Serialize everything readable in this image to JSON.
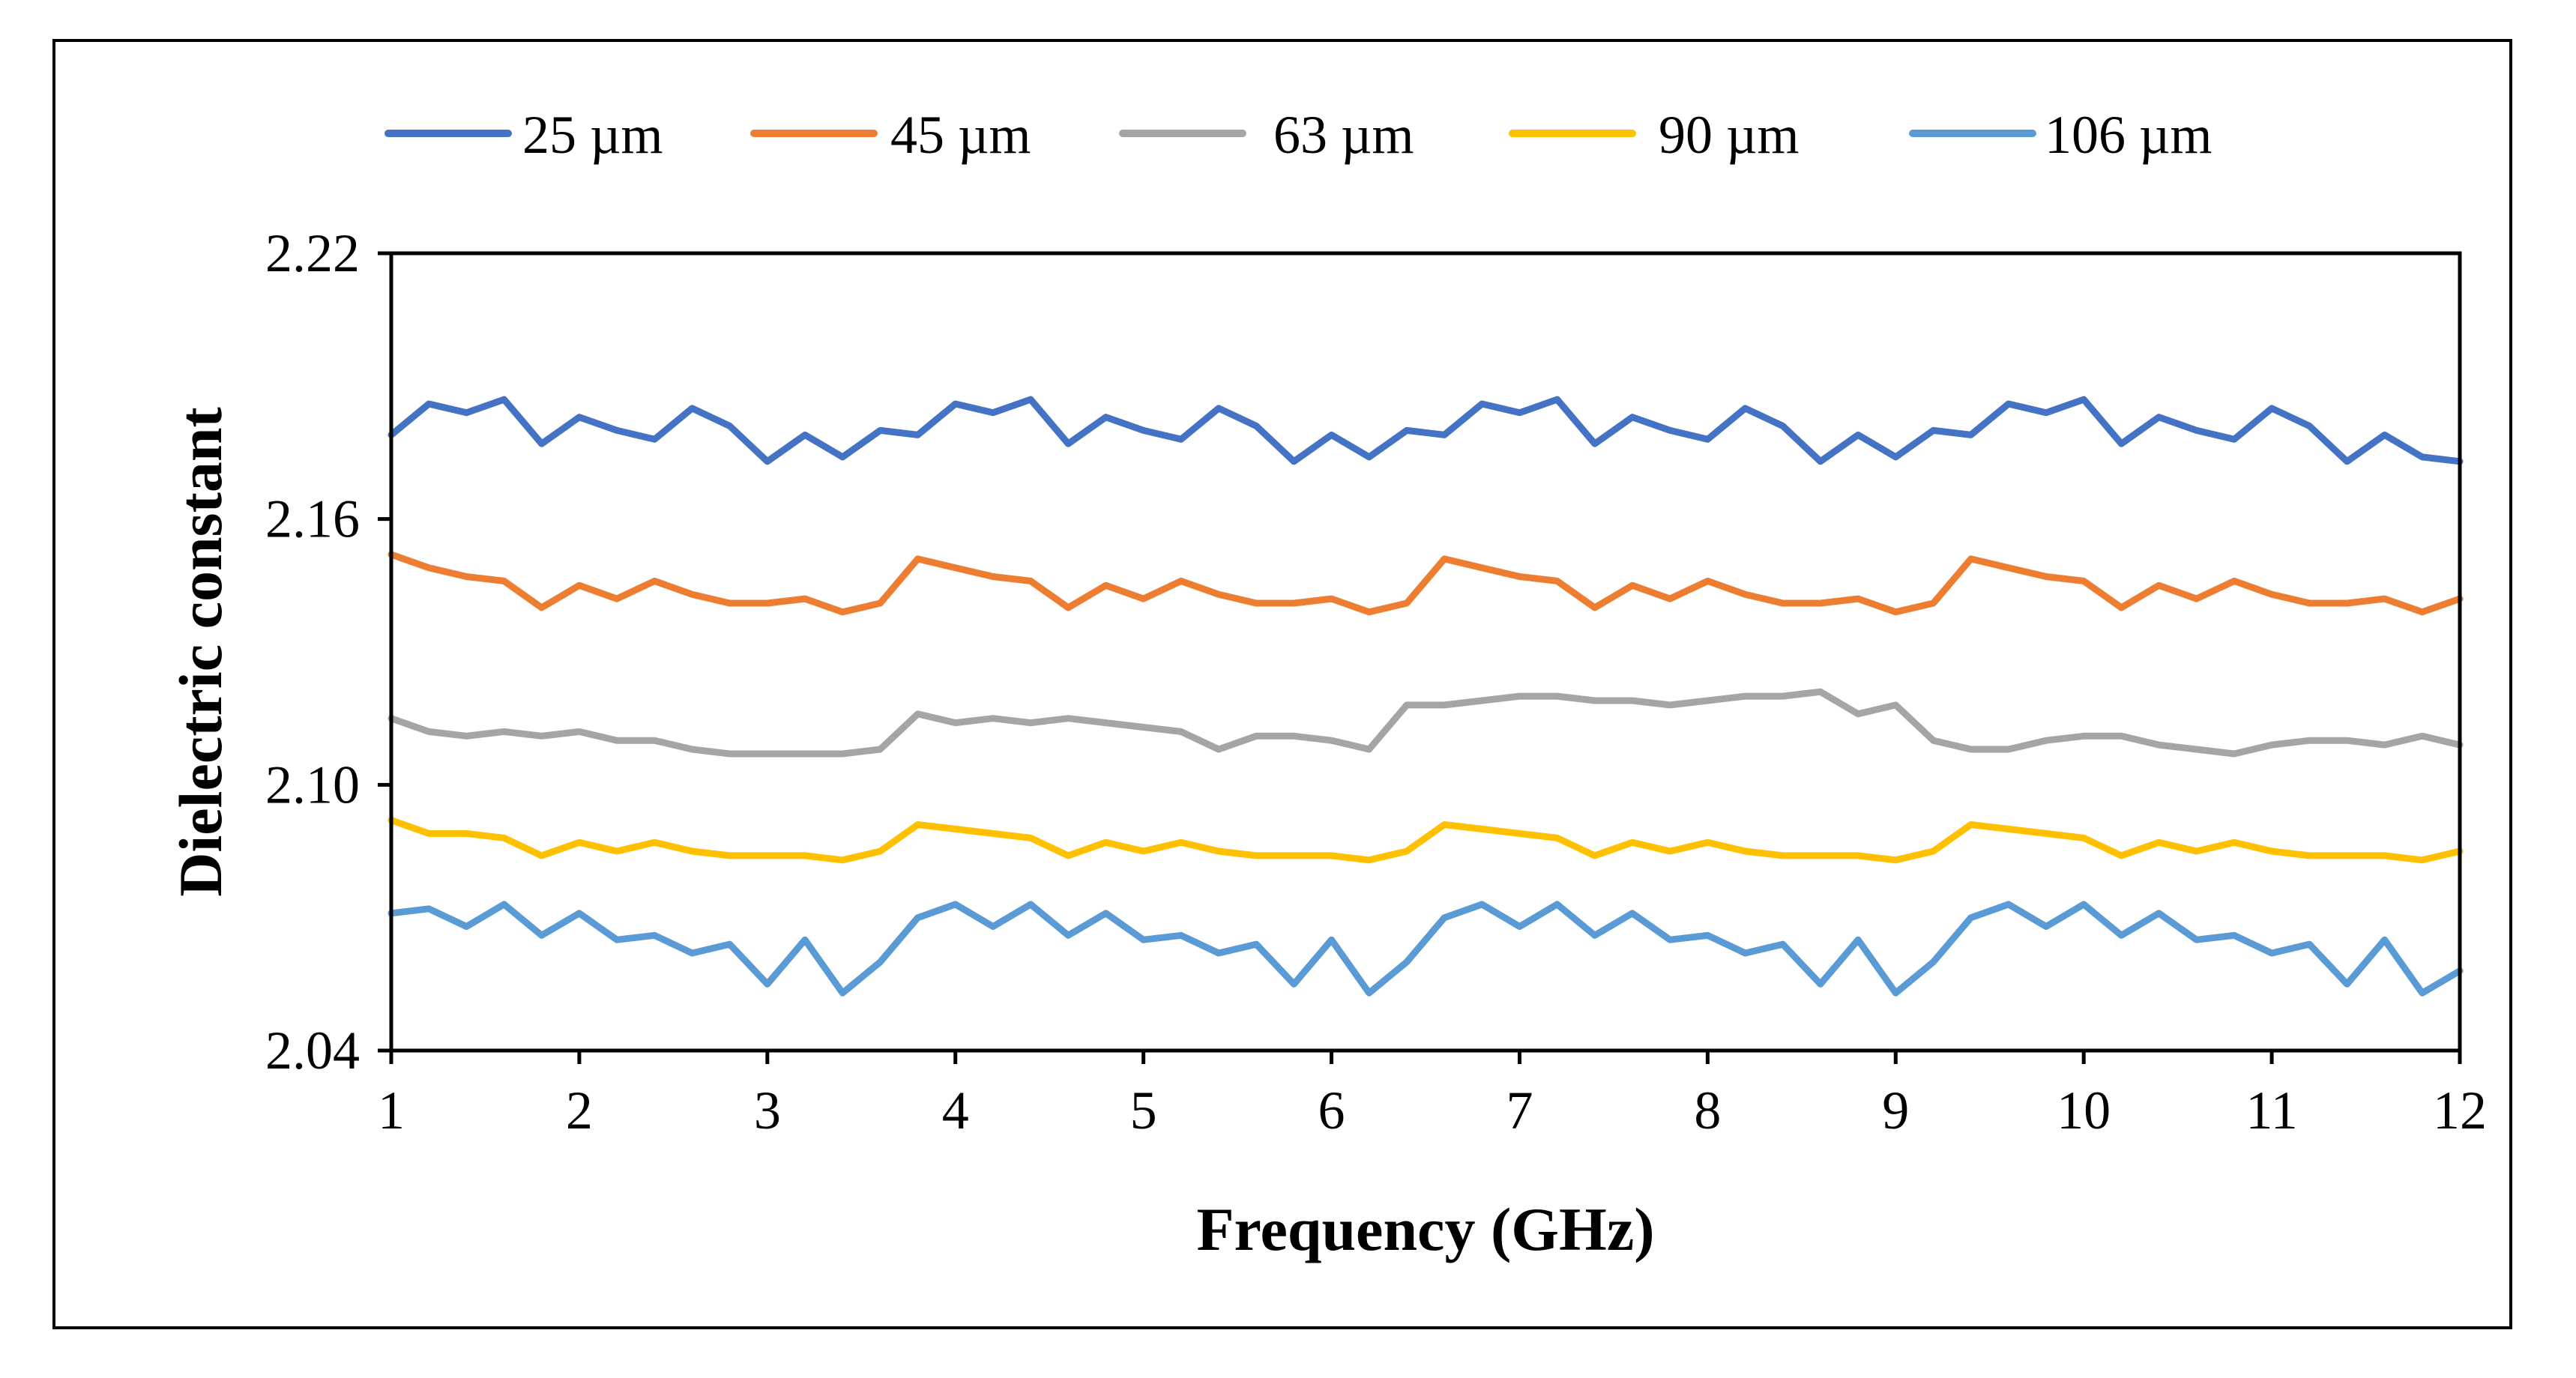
{
  "chart_data": {
    "type": "line",
    "title": "",
    "xlabel": "Frequency (GHz)",
    "ylabel": "Dielectric constant",
    "xlim": [
      1,
      12
    ],
    "ylim": [
      2.04,
      2.22
    ],
    "x_ticks": [
      1,
      2,
      3,
      4,
      5,
      6,
      7,
      8,
      9,
      10,
      11,
      12
    ],
    "x_tick_labels": [
      "1",
      "2",
      "3",
      "4",
      "5",
      "6",
      "7",
      "8",
      "9",
      "10",
      "11",
      "12"
    ],
    "y_ticks": [
      2.04,
      2.1,
      2.16,
      2.22
    ],
    "y_tick_labels": [
      "2.04",
      "2.10",
      "2.16",
      "2.22"
    ],
    "grid": false,
    "legend_position": "top",
    "x": [
      1.0,
      1.2,
      1.4,
      1.6,
      1.8,
      2.0,
      2.2,
      2.4,
      2.6,
      2.8,
      3.0,
      3.2,
      3.4,
      3.6,
      3.8,
      4.0,
      4.2,
      4.4,
      4.6,
      4.8,
      5.0,
      5.2,
      5.4,
      5.6,
      5.8,
      6.0,
      6.2,
      6.4,
      6.6,
      6.8,
      7.0,
      7.2,
      7.4,
      7.6,
      7.8,
      8.0,
      8.2,
      8.4,
      8.6,
      8.8,
      9.0,
      9.2,
      9.4,
      9.6,
      9.8,
      10.0,
      10.2,
      10.4,
      10.6,
      10.8,
      11.0,
      11.2,
      11.4,
      11.6,
      11.8,
      12.0
    ],
    "series": [
      {
        "name": "25 µm",
        "color": "#4472C4",
        "values": [
          2.179,
          2.186,
          2.184,
          2.187,
          2.177,
          2.183,
          2.18,
          2.178,
          2.185,
          2.181,
          2.173,
          2.179,
          2.174,
          2.18,
          2.179,
          2.186,
          2.184,
          2.187,
          2.177,
          2.183,
          2.18,
          2.178,
          2.185,
          2.181,
          2.173,
          2.179,
          2.174,
          2.18,
          2.179,
          2.186,
          2.184,
          2.187,
          2.177,
          2.183,
          2.18,
          2.178,
          2.185,
          2.181,
          2.173,
          2.179,
          2.174,
          2.18,
          2.179,
          2.186,
          2.184,
          2.187,
          2.177,
          2.183,
          2.18,
          2.178,
          2.185,
          2.181,
          2.173,
          2.179,
          2.174,
          2.173
        ]
      },
      {
        "name": "45 µm",
        "color": "#ED7D31",
        "values": [
          2.152,
          2.149,
          2.147,
          2.146,
          2.14,
          2.145,
          2.142,
          2.146,
          2.143,
          2.141,
          2.141,
          2.142,
          2.139,
          2.141,
          2.151,
          2.149,
          2.147,
          2.146,
          2.14,
          2.145,
          2.142,
          2.146,
          2.143,
          2.141,
          2.141,
          2.142,
          2.139,
          2.141,
          2.151,
          2.149,
          2.147,
          2.146,
          2.14,
          2.145,
          2.142,
          2.146,
          2.143,
          2.141,
          2.141,
          2.142,
          2.139,
          2.141,
          2.151,
          2.149,
          2.147,
          2.146,
          2.14,
          2.145,
          2.142,
          2.146,
          2.143,
          2.141,
          2.141,
          2.142,
          2.139,
          2.142
        ]
      },
      {
        "name": "63 µm",
        "color": "#A5A5A5",
        "values": [
          2.115,
          2.112,
          2.111,
          2.112,
          2.111,
          2.112,
          2.11,
          2.11,
          2.108,
          2.107,
          2.107,
          2.107,
          2.107,
          2.108,
          2.116,
          2.114,
          2.115,
          2.114,
          2.115,
          2.114,
          2.113,
          2.112,
          2.108,
          2.111,
          2.111,
          2.11,
          2.108,
          2.118,
          2.118,
          2.119,
          2.12,
          2.12,
          2.119,
          2.119,
          2.118,
          2.119,
          2.12,
          2.12,
          2.121,
          2.116,
          2.118,
          2.11,
          2.108,
          2.108,
          2.11,
          2.111,
          2.111,
          2.109,
          2.108,
          2.107,
          2.109,
          2.11,
          2.11,
          2.109,
          2.111,
          2.109
        ]
      },
      {
        "name": "90 µm",
        "color": "#FFC000",
        "values": [
          2.092,
          2.089,
          2.089,
          2.088,
          2.084,
          2.087,
          2.085,
          2.087,
          2.085,
          2.084,
          2.084,
          2.084,
          2.083,
          2.085,
          2.091,
          2.09,
          2.089,
          2.088,
          2.084,
          2.087,
          2.085,
          2.087,
          2.085,
          2.084,
          2.084,
          2.084,
          2.083,
          2.085,
          2.091,
          2.09,
          2.089,
          2.088,
          2.084,
          2.087,
          2.085,
          2.087,
          2.085,
          2.084,
          2.084,
          2.084,
          2.083,
          2.085,
          2.091,
          2.09,
          2.089,
          2.088,
          2.084,
          2.087,
          2.085,
          2.087,
          2.085,
          2.084,
          2.084,
          2.084,
          2.083,
          2.085
        ]
      },
      {
        "name": "106 µm",
        "color": "#5B9BD5",
        "values": [
          2.071,
          2.072,
          2.068,
          2.073,
          2.066,
          2.071,
          2.065,
          2.066,
          2.062,
          2.064,
          2.055,
          2.065,
          2.053,
          2.06,
          2.07,
          2.073,
          2.068,
          2.073,
          2.066,
          2.071,
          2.065,
          2.066,
          2.062,
          2.064,
          2.055,
          2.065,
          2.053,
          2.06,
          2.07,
          2.073,
          2.068,
          2.073,
          2.066,
          2.071,
          2.065,
          2.066,
          2.062,
          2.064,
          2.055,
          2.065,
          2.053,
          2.06,
          2.07,
          2.073,
          2.068,
          2.073,
          2.066,
          2.071,
          2.065,
          2.066,
          2.062,
          2.064,
          2.055,
          2.065,
          2.053,
          2.058
        ]
      }
    ]
  }
}
